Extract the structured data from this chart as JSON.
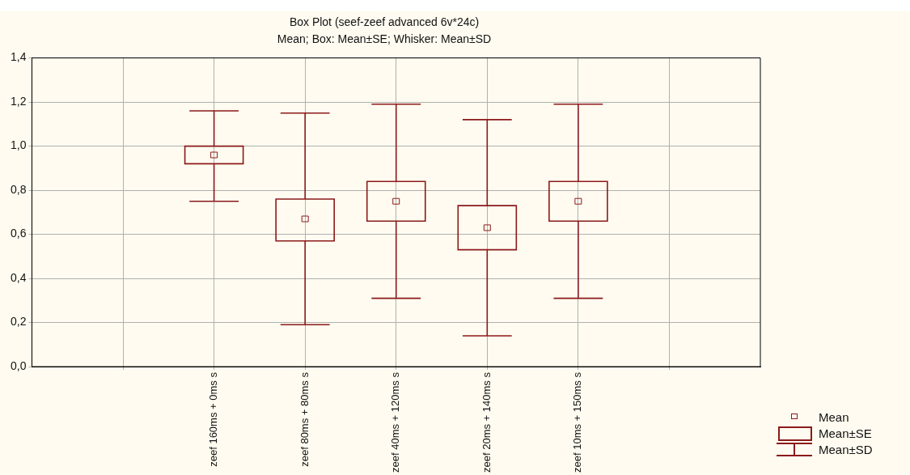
{
  "chart_data": {
    "type": "box",
    "title": "Box Plot (seef-zeef advanced 6v*24c)",
    "subtitle": "Mean; Box: Mean±SE; Whisker: Mean±SD",
    "categories": [
      null,
      "zeef 160ms + 0ms s",
      "zeef 80ms + 80ms s",
      "zeef 40ms + 120ms s",
      "zeef 20ms + 140ms s",
      "zeef 10ms + 150ms s",
      null
    ],
    "series": [
      {
        "color": "#8b1a1a",
        "boxes": [
          null,
          {
            "low": 0.75,
            "q1": 0.92,
            "median": 0.96,
            "q3": 1.0,
            "high": 1.16
          },
          {
            "low": 0.19,
            "q1": 0.57,
            "median": 0.67,
            "q3": 0.76,
            "high": 1.15
          },
          {
            "low": 0.31,
            "q1": 0.66,
            "median": 0.75,
            "q3": 0.84,
            "high": 1.19
          },
          {
            "low": 0.14,
            "q1": 0.53,
            "median": 0.63,
            "q3": 0.73,
            "high": 1.12
          },
          {
            "low": 0.31,
            "q1": 0.66,
            "median": 0.75,
            "q3": 0.84,
            "high": 1.19
          },
          null
        ]
      }
    ],
    "ylim": [
      0,
      1.4
    ],
    "yticks": [
      {
        "value": 0,
        "label": "0,0"
      },
      {
        "value": 0.2,
        "label": "0,2"
      },
      {
        "value": 0.4,
        "label": "0,4"
      },
      {
        "value": 0.6,
        "label": "0,6"
      },
      {
        "value": 0.8,
        "label": "0,8"
      },
      {
        "value": 1.0,
        "label": "1,0"
      },
      {
        "value": 1.2,
        "label": "1,2"
      },
      {
        "value": 1.4,
        "label": "1,4"
      }
    ],
    "grid": true,
    "annotations": [
      "Mean",
      "Mean±SE",
      "Mean±SD"
    ]
  }
}
